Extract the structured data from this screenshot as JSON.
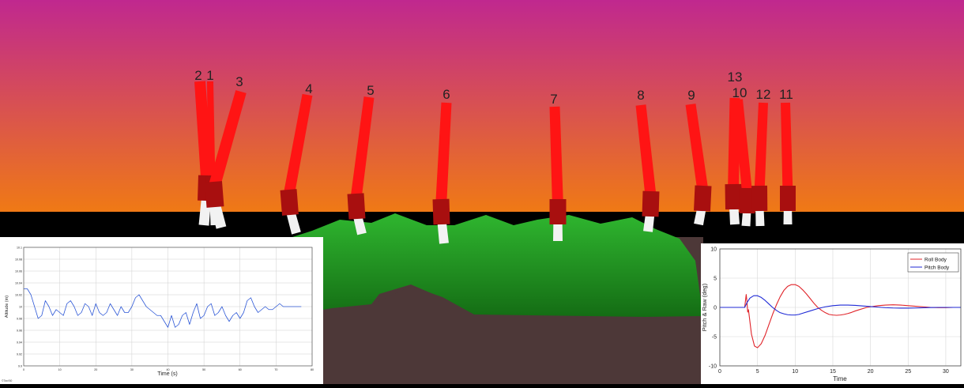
{
  "scene": {
    "leg_labels": [
      "2",
      "1",
      "3",
      "4",
      "5",
      "6",
      "7",
      "8",
      "9",
      "13",
      "10",
      "12",
      "11"
    ],
    "colors": {
      "sky_top": "#c0288f",
      "sky_bottom": "#f07a14",
      "horizon": "#000000",
      "hills": "#1f9a1f",
      "ground": "#4d3838",
      "leg_upper": "#ff1414",
      "leg_joint": "#a80f0f",
      "leg_foot": "#f2f2f2"
    }
  },
  "chart_data": [
    {
      "type": "line",
      "title": "",
      "xlabel": "Time (s)",
      "ylabel": "Altitude (m)",
      "xlim": [
        0,
        80
      ],
      "ylim": [
        9.9,
        10.1
      ],
      "x_ticks": [
        "0",
        "10",
        "20",
        "30",
        "40",
        "50",
        "60",
        "70",
        "80"
      ],
      "y_ticks": [
        "9.9",
        "9.92",
        "9.94",
        "9.96",
        "9.98",
        "10",
        "10.02",
        "10.04",
        "10.06",
        "10.08",
        "10.1"
      ],
      "grid": true,
      "footer": "©Taxi'60",
      "series": [
        {
          "color": "#2b56d6",
          "x": [
            0,
            1,
            2,
            3,
            4,
            5,
            6,
            7,
            8,
            9,
            10,
            11,
            12,
            13,
            14,
            15,
            16,
            17,
            18,
            19,
            20,
            21,
            22,
            23,
            24,
            25,
            26,
            27,
            28,
            29,
            30,
            31,
            32,
            33,
            34,
            35,
            36,
            37,
            38,
            39,
            40,
            41,
            42,
            43,
            44,
            45,
            46,
            47,
            48,
            49,
            50,
            51,
            52,
            53,
            54,
            55,
            56,
            57,
            58,
            59,
            60,
            61,
            62,
            63,
            64,
            65,
            66,
            67,
            68,
            69,
            70,
            71,
            72,
            73,
            74,
            75,
            76,
            77
          ],
          "values": [
            10.03,
            10.03,
            10.02,
            10.0,
            9.98,
            9.985,
            10.01,
            10.0,
            9.985,
            9.995,
            9.99,
            9.985,
            10.005,
            10.01,
            10.0,
            9.985,
            9.99,
            10.005,
            10.0,
            9.985,
            10.005,
            9.99,
            9.985,
            9.99,
            10.005,
            9.995,
            9.985,
            10.0,
            9.99,
            9.99,
            10.0,
            10.015,
            10.02,
            10.01,
            10.0,
            9.995,
            9.99,
            9.985,
            9.985,
            9.975,
            9.965,
            9.985,
            9.965,
            9.97,
            9.985,
            9.99,
            9.97,
            9.99,
            10.005,
            9.98,
            9.985,
            10.0,
            10.005,
            9.985,
            9.99,
            10.0,
            9.985,
            9.975,
            9.985,
            9.99,
            9.98,
            9.99,
            10.01,
            10.015,
            10.0,
            9.99,
            9.995,
            10.0,
            9.995,
            9.995,
            10.0,
            10.005,
            10.0,
            10.0,
            10.0,
            10.0,
            10.0,
            10.0
          ]
        }
      ]
    },
    {
      "type": "line",
      "title": "",
      "xlabel": "Time",
      "ylabel": "Pitch & Raw (deg)",
      "xlim": [
        0,
        32
      ],
      "ylim": [
        -10,
        10
      ],
      "x_ticks": [
        "0",
        "5",
        "10",
        "15",
        "20",
        "25",
        "30"
      ],
      "y_ticks": [
        "-10",
        "-5",
        "0",
        "5",
        "10"
      ],
      "grid": true,
      "legend_position": "top-right",
      "series": [
        {
          "name": "Roll Body",
          "color": "#e0242a",
          "x": [
            0,
            3.3,
            3.5,
            3.6,
            3.7,
            3.8,
            4.0,
            4.2,
            4.6,
            5.0,
            5.5,
            6.0,
            6.5,
            7.0,
            7.5,
            8.0,
            8.5,
            9.0,
            9.5,
            10.0,
            10.5,
            11.0,
            11.5,
            12.0,
            12.5,
            13.0,
            13.5,
            14.0,
            14.5,
            15.0,
            15.5,
            16.0,
            16.5,
            17.0,
            17.5,
            18.0,
            18.5,
            19.0,
            19.5,
            20.0,
            21.0,
            22.0,
            23.0,
            24.0,
            25.0,
            26.0,
            27.0,
            28.0,
            29.0,
            30.0,
            31.0,
            32.0
          ],
          "values": [
            0,
            0,
            2.2,
            1.0,
            -0.8,
            -0.4,
            -2.5,
            -4.6,
            -6.6,
            -6.9,
            -6.2,
            -4.8,
            -3.0,
            -1.2,
            0.4,
            1.8,
            2.9,
            3.6,
            3.9,
            3.9,
            3.6,
            3.0,
            2.3,
            1.5,
            0.7,
            0.0,
            -0.5,
            -0.9,
            -1.2,
            -1.3,
            -1.35,
            -1.3,
            -1.2,
            -1.05,
            -0.85,
            -0.6,
            -0.4,
            -0.2,
            0.0,
            0.1,
            0.3,
            0.4,
            0.45,
            0.4,
            0.3,
            0.2,
            0.1,
            0.0,
            -0.05,
            -0.05,
            0.0,
            0.0
          ]
        },
        {
          "name": "Pitch Body",
          "color": "#1f2ad6",
          "x": [
            0,
            3.3,
            3.6,
            4.0,
            4.5,
            5.0,
            5.5,
            6.0,
            6.5,
            7.0,
            7.5,
            8.0,
            8.5,
            9.0,
            9.5,
            10.0,
            10.5,
            11.0,
            12.0,
            13.0,
            14.0,
            15.0,
            16.0,
            17.0,
            18.0,
            19.0,
            20.0,
            21.0,
            22.0,
            23.0,
            24.0,
            25.0,
            26.0,
            27.0,
            28.0,
            29.0,
            30.0,
            31.0,
            32.0
          ],
          "values": [
            0,
            0,
            0.8,
            1.6,
            2.0,
            2.0,
            1.7,
            1.2,
            0.6,
            0.0,
            -0.5,
            -0.9,
            -1.1,
            -1.25,
            -1.3,
            -1.3,
            -1.2,
            -1.0,
            -0.6,
            -0.2,
            0.1,
            0.3,
            0.4,
            0.4,
            0.35,
            0.25,
            0.15,
            0.05,
            -0.05,
            -0.1,
            -0.12,
            -0.12,
            -0.1,
            -0.06,
            -0.03,
            0.0,
            0.0,
            0.0,
            0.0
          ]
        }
      ]
    }
  ]
}
